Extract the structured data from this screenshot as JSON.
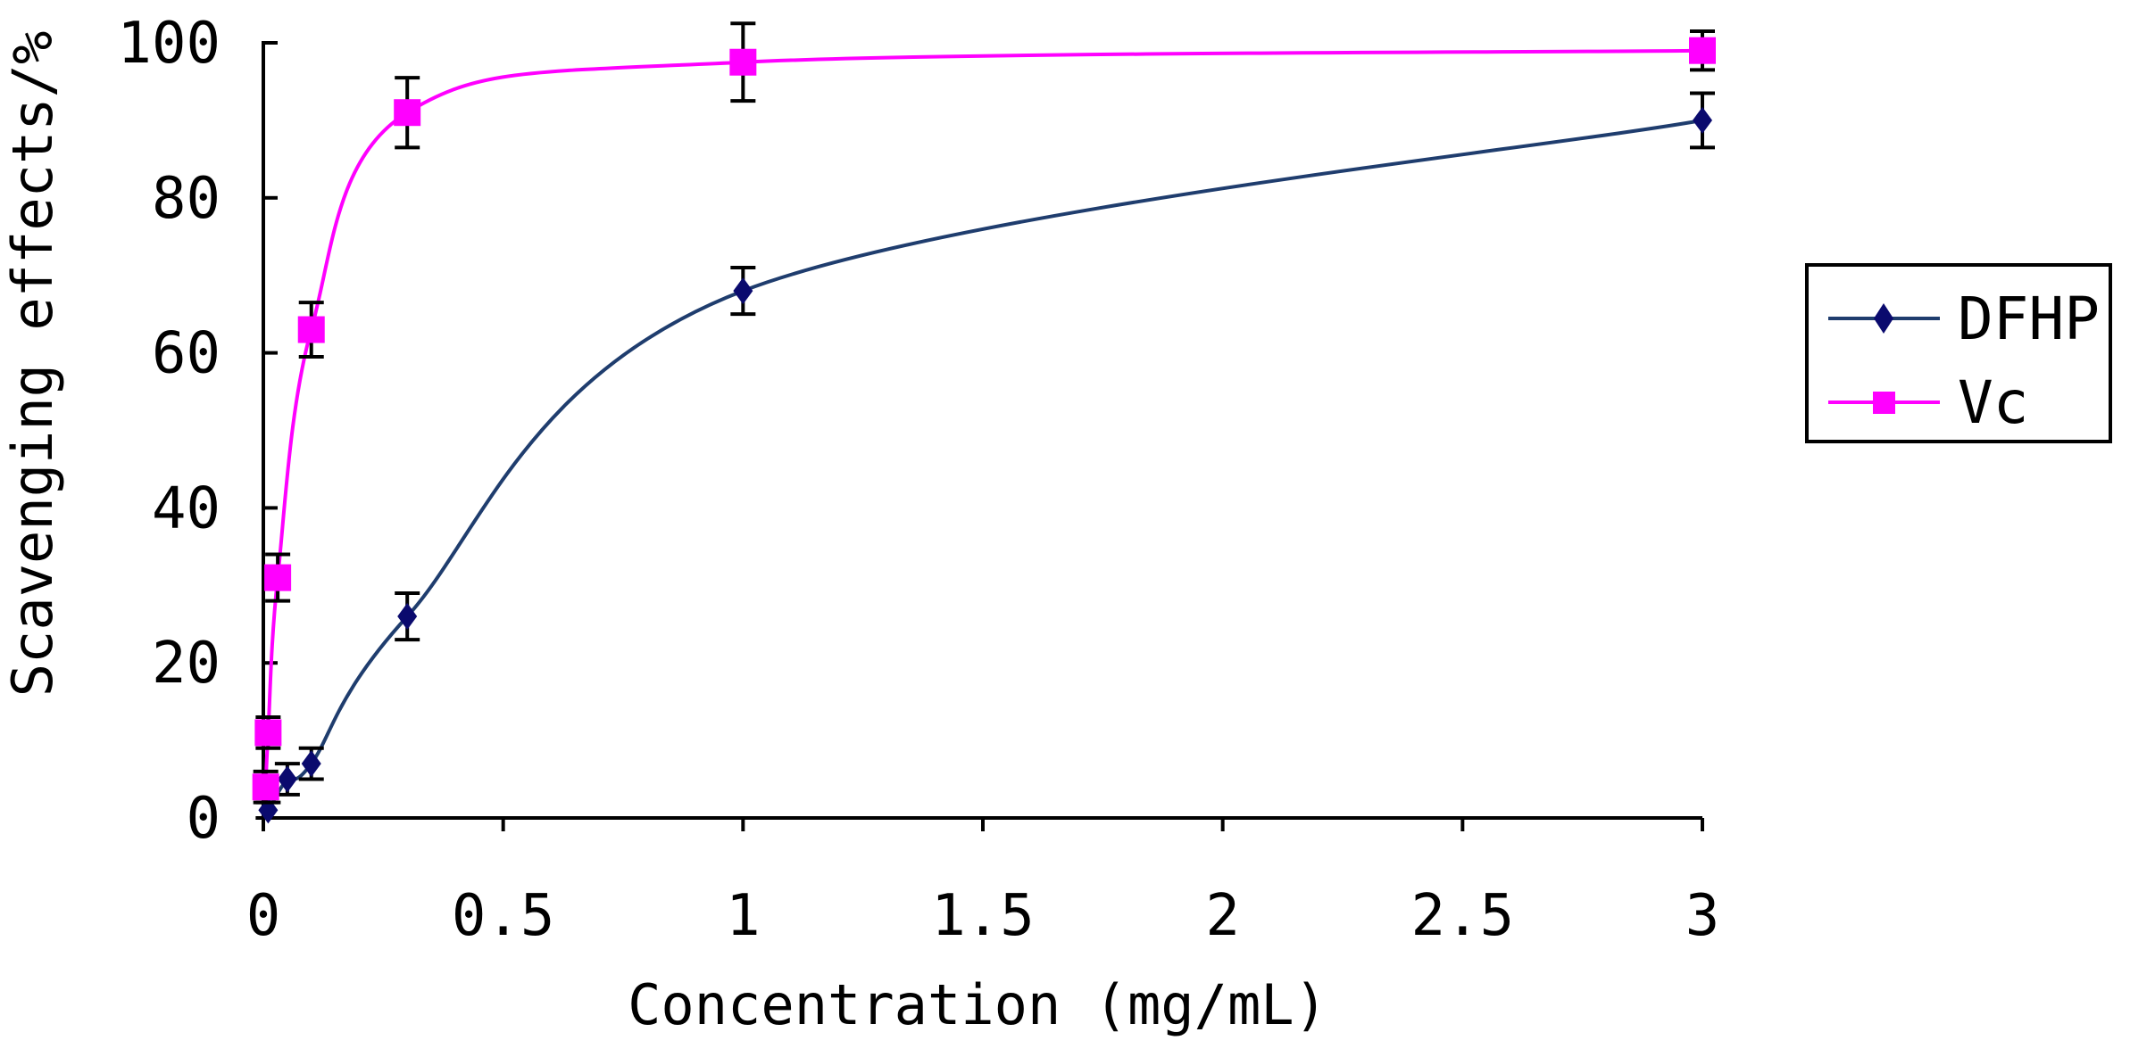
{
  "chart_data": {
    "type": "line",
    "title": "",
    "xlabel": "Concentration (mg/mL)",
    "ylabel": "Scavenging effects/%",
    "xlim": [
      0,
      3
    ],
    "ylim": [
      0,
      100
    ],
    "x_ticks": [
      0,
      0.5,
      1,
      1.5,
      2,
      2.5,
      3
    ],
    "x_tick_labels": [
      "0",
      "0.5",
      "1",
      "1.5",
      "2",
      "2.5",
      "3"
    ],
    "y_ticks": [
      0,
      20,
      40,
      60,
      80,
      100
    ],
    "y_tick_labels": [
      "0",
      "20",
      "40",
      "60",
      "80",
      "100"
    ],
    "grid": false,
    "legend_position": "right",
    "series": [
      {
        "name": "DFHP",
        "color": "#1f3d6e",
        "marker_color": "#0a0a6e",
        "marker": "diamond",
        "x": [
          0.01,
          0.05,
          0.1,
          0.3,
          1,
          3
        ],
        "y": [
          1,
          5,
          7,
          26,
          68,
          90
        ],
        "error": [
          1,
          2,
          2,
          3,
          3,
          3.5
        ]
      },
      {
        "name": "Vc",
        "color": "#ff00ff",
        "marker_color": "#ff00ff",
        "marker": "square",
        "x": [
          0.005,
          0.01,
          0.03,
          0.1,
          0.3,
          1,
          3
        ],
        "y": [
          4,
          11,
          31,
          63,
          91,
          97.5,
          99
        ],
        "error": [
          2,
          2,
          3,
          3.5,
          4.5,
          5,
          2.5
        ]
      }
    ]
  }
}
